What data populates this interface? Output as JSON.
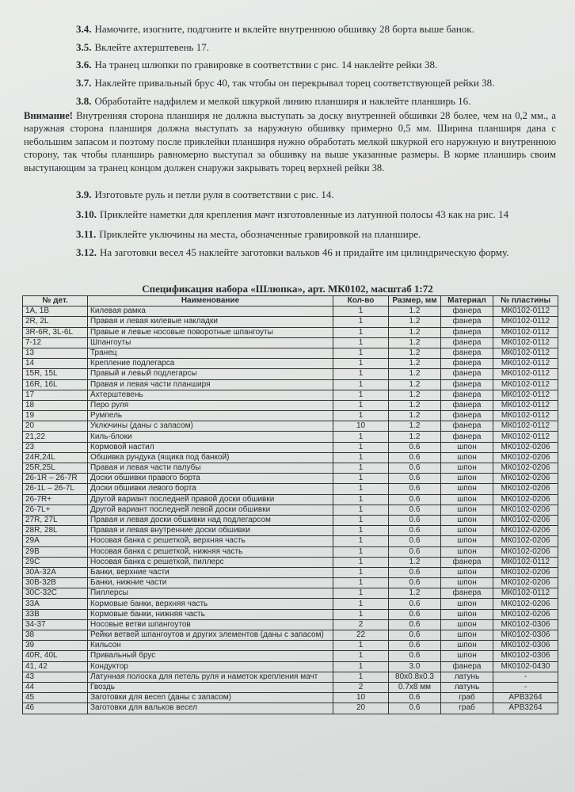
{
  "steps": [
    {
      "number": "3.4.",
      "text": "Намочите, изогните, подгоните и вклейте внутреннюю обшивку 28 борта выше банок."
    },
    {
      "number": "3.5.",
      "text": "Вклейте ахтерштевень 17."
    },
    {
      "number": "3.6.",
      "text": "На транец шлюпки по гравировке в соответствии с рис. 14 наклейте рейки 38."
    },
    {
      "number": "3.7.",
      "text": "Наклейте привальный брус 40, так чтобы он перекрывал торец соответствующей рейки 38."
    },
    {
      "number": "3.8.",
      "text": "Обработайте надфилем и мелкой шкуркой линию планширя и наклейте планширь 16."
    }
  ],
  "note": {
    "label": "Внимание!",
    "text": "Внутренняя сторона планширя не должна выступать за доску внутренней обшивки 28 более, чем на 0,2 мм., а наружная сторона планширя должна выступать за наружную обшивку примерно 0,5 мм. Ширина планширя дана с небольшим запасом и поэтому после приклейки планширя нужно обработать мелкой шкуркой его наружную и внутреннюю сторону, так чтобы планширь равномерно выступал за обшивку на выше указанные размеры. В корме планширь своим выступающим за транец концом должен снаружи закрывать торец верхней рейки 38."
  },
  "steps_continued": [
    {
      "number": "3.9.",
      "text": "Изготовьте руль и петли руля в соответствии с рис. 14."
    },
    {
      "number": "3.10.",
      "text": "Приклейте наметки для крепления мачт изготовленные из латунной полосы 43 как на рис. 14"
    },
    {
      "number": "3.11.",
      "text": "Приклейте уключины на места, обозначенные гравировкой на планшире."
    },
    {
      "number": "3.12.",
      "text": "На заготовки весел 45 наклейте заготовки вальков 46 и придайте им цилиндрическую форму."
    }
  ],
  "table": {
    "title": "Спецификация набора «Шлюпка», арт. МК0102, масштаб 1:72",
    "columns": [
      "№ дет.",
      "Наименование",
      "Кол-во",
      "Размер, мм",
      "Материал",
      "№ пластины"
    ],
    "rows": [
      [
        "1A, 1B",
        "Килевая рамка",
        "1",
        "1.2",
        "фанера",
        "МК0102-0112"
      ],
      [
        "2R, 2L",
        "Правая и левая килевые накладки",
        "1",
        "1.2",
        "фанера",
        "МК0102-0112"
      ],
      [
        "3R-6R, 3L-6L",
        "Правые и левые носовые поворотные шпангоуты",
        "1",
        "1.2",
        "фанера",
        "МК0102-0112"
      ],
      [
        "7-12",
        "Шпангоуты",
        "1",
        "1.2",
        "фанера",
        "МК0102-0112"
      ],
      [
        "13",
        "Транец",
        "1",
        "1.2",
        "фанера",
        "МК0102-0112"
      ],
      [
        "14",
        "Крепление подлегарса",
        "1",
        "1.2",
        "фанера",
        "МК0102-0112"
      ],
      [
        "15R, 15L",
        "Правый и левый подлегарсы",
        "1",
        "1.2",
        "фанера",
        "МК0102-0112"
      ],
      [
        "16R, 16L",
        "Правая и левая части планширя",
        "1",
        "1.2",
        "фанера",
        "МК0102-0112"
      ],
      [
        "17",
        "Ахтерштевень",
        "1",
        "1.2",
        "фанера",
        "МК0102-0112"
      ],
      [
        "18",
        "Перо руля",
        "1",
        "1.2",
        "фанера",
        "МК0102-0112"
      ],
      [
        "19",
        "Румпель",
        "1",
        "1.2",
        "фанера",
        "МК0102-0112"
      ],
      [
        "20",
        "Уключины (даны с запасом)",
        "10",
        "1.2",
        "фанера",
        "МК0102-0112"
      ],
      [
        "21,22",
        "Киль-блоки",
        "1",
        "1.2",
        "фанера",
        "МК0102-0112"
      ],
      [
        "23",
        "Кормовой настил",
        "1",
        "0.6",
        "шпон",
        "МК0102-0206"
      ],
      [
        "24R,24L",
        "Обшивка рундука (ящика под банкой)",
        "1",
        "0.6",
        "шпон",
        "МК0102-0206"
      ],
      [
        "25R,25L",
        "Правая и левая части палубы",
        "1",
        "0.6",
        "шпон",
        "МК0102-0206"
      ],
      [
        "26-1R – 26-7R",
        "Доски обшивки правого борта",
        "1",
        "0.6",
        "шпон",
        "МК0102-0206"
      ],
      [
        "26-1L – 26-7L",
        "Доски обшивки левого борта",
        "1",
        "0.6",
        "шпон",
        "МК0102-0206"
      ],
      [
        "26-7R+",
        "Другой вариант последней правой доски обшивки",
        "1",
        "0.6",
        "шпон",
        "МК0102-0206"
      ],
      [
        "26-7L+",
        "Другой вариант последней левой доски обшивки",
        "1",
        "0.6",
        "шпон",
        "МК0102-0206"
      ],
      [
        "27R, 27L",
        "Правая и левая доски обшивки над подлегарсом",
        "1",
        "0.6",
        "шпон",
        "МК0102-0206"
      ],
      [
        "28R, 28L",
        "Правая и левая внутренние доски обшивки",
        "1",
        "0.6",
        "шпон",
        "МК0102-0206"
      ],
      [
        "29A",
        "Носовая банка с решеткой, верхняя часть",
        "1",
        "0.6",
        "шпон",
        "МК0102-0206"
      ],
      [
        "29B",
        "Носовая банка с решеткой, нижняя часть",
        "1",
        "0.6",
        "шпон",
        "МК0102-0206"
      ],
      [
        "29C",
        "Носовая банка с решеткой, пиллерс",
        "1",
        "1.2",
        "фанера",
        "МК0102-0112"
      ],
      [
        "30A-32A",
        "Банки, верхние части",
        "1",
        "0.6",
        "шпон",
        "МК0102-0206"
      ],
      [
        "30B-32B",
        "Банки, нижние части",
        "1",
        "0.6",
        "шпон",
        "МК0102-0206"
      ],
      [
        "30C-32C",
        "Пиллерсы",
        "1",
        "1.2",
        "фанера",
        "МК0102-0112"
      ],
      [
        "33A",
        "Кормовые банки, верхняя часть",
        "1",
        "0.6",
        "шпон",
        "МК0102-0206"
      ],
      [
        "33B",
        "Кормовые банки, нижняя часть",
        "1",
        "0.6",
        "шпон",
        "МК0102-0206"
      ],
      [
        "34-37",
        "Носовые ветви шпангоутов",
        "2",
        "0.6",
        "шпон",
        "МК0102-0306"
      ],
      [
        "38",
        "Рейки ветвей шпангоутов и других элементов (даны с запасом)",
        "22",
        "0.6",
        "шпон",
        "МК0102-0306"
      ],
      [
        "39",
        "Кильсон",
        "1",
        "0.6",
        "шпон",
        "МК0102-0306"
      ],
      [
        "40R, 40L",
        "Привальный брус",
        "1",
        "0.6",
        "шпон",
        "МК0102-0306"
      ],
      [
        "41, 42",
        "Кондуктор",
        "1",
        "3.0",
        "фанера",
        "МК0102-0430"
      ],
      [
        "43",
        "Латунная полоска для петель руля и наметок крепления мачт",
        "1",
        "80x0.8x0.3",
        "латунь",
        "-"
      ],
      [
        "44",
        "Гвоздь",
        "2",
        "0.7x8 мм",
        "латунь",
        "-"
      ],
      [
        "45",
        "Заготовки для весел (даны с запасом)",
        "10",
        "0.6",
        "граб",
        "АРВ3264"
      ],
      [
        "46",
        "Заготовки для вальков весел",
        "20",
        "0.6",
        "граб",
        "АРВ3264"
      ]
    ]
  }
}
